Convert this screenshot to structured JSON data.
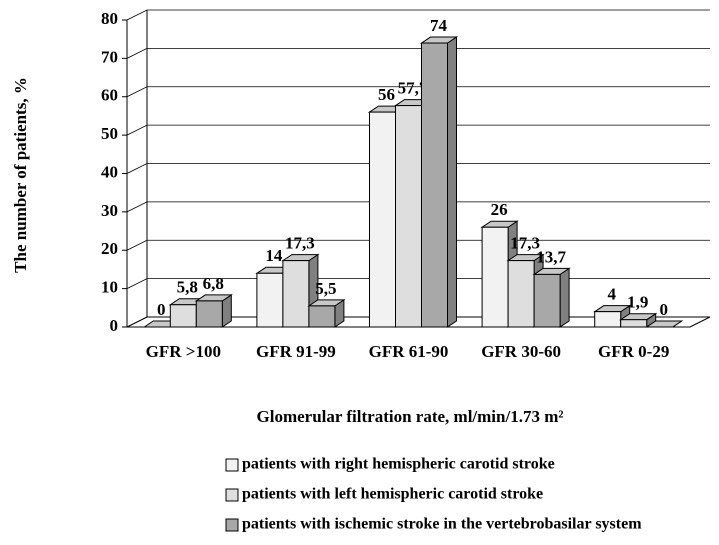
{
  "chart_data": {
    "type": "bar3d",
    "y_label": "The number of patients, %",
    "x_label": "Glomerular filtration rate, ml/min/1.73 m²",
    "categories": [
      "GFR >100",
      "GFR 91-99",
      "GFR 61-90",
      "GFR 30-60",
      "GFR 0-29"
    ],
    "series": [
      {
        "name": "patients with right hemispheric carotid stroke",
        "color": "#f2f2f2",
        "values": [
          0,
          14,
          56,
          26,
          4
        ],
        "value_labels": [
          "0",
          "14",
          "56",
          "26",
          "4"
        ]
      },
      {
        "name": "patients with left hemispheric carotid stroke",
        "color": "#dedede",
        "values": [
          5.8,
          17.3,
          57.7,
          17.3,
          1.9
        ],
        "value_labels": [
          "5,8",
          "17,3",
          "57,7",
          "17,3",
          "1,9"
        ]
      },
      {
        "name": "patients with ischemic stroke in the vertebrobasilar system",
        "color": "#a8a8a8",
        "values": [
          6.8,
          5.5,
          74,
          13.7,
          0
        ],
        "value_labels": [
          "6,8",
          "5,5",
          "74",
          "13,7",
          "0"
        ]
      }
    ],
    "ylim": [
      0,
      80
    ],
    "yticks": [
      0,
      10,
      20,
      30,
      40,
      50,
      60,
      70,
      80
    ],
    "grid": true
  }
}
